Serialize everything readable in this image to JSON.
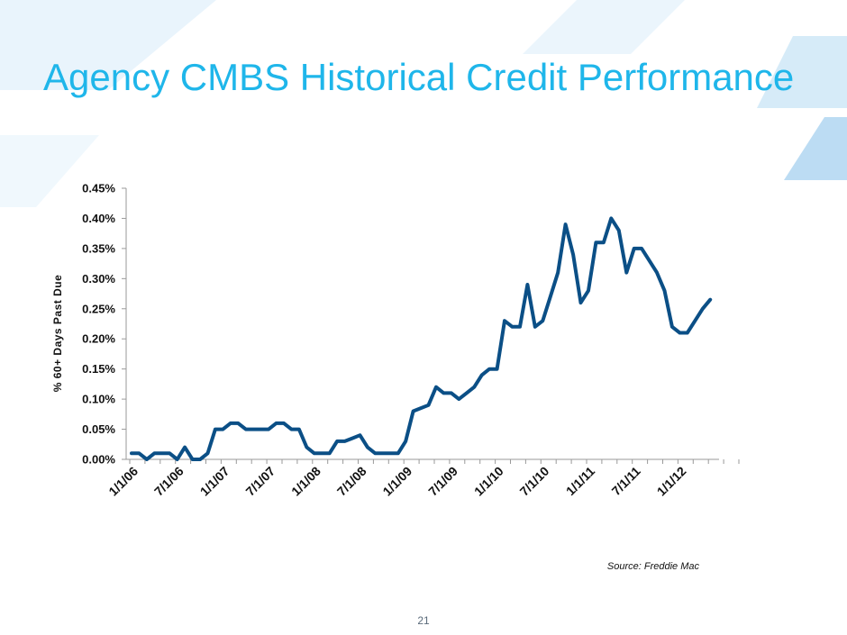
{
  "slide": {
    "title": "Agency CMBS Historical Credit Performance",
    "source": "Source: Freddie Mac",
    "page_number": "21"
  },
  "colors": {
    "title": "#1fb6ea",
    "line": "#0b4f86",
    "accent_light": "#d8ecf8",
    "accent_mid": "#bcdcf3"
  },
  "chart_data": {
    "type": "line",
    "title": "",
    "xlabel": "",
    "ylabel": "% 60+ Days Past Due",
    "ylim": [
      0,
      0.45
    ],
    "y_ticks": [
      0,
      0.05,
      0.1,
      0.15,
      0.2,
      0.25,
      0.3,
      0.35,
      0.4,
      0.45
    ],
    "y_tick_labels": [
      "0.00%",
      "0.05%",
      "0.10%",
      "0.15%",
      "0.20%",
      "0.25%",
      "0.30%",
      "0.35%",
      "0.40%",
      "0.45%"
    ],
    "x_tick_labels": [
      "1/1/06",
      "7/1/06",
      "1/1/07",
      "7/1/07",
      "1/1/08",
      "7/1/08",
      "1/1/09",
      "7/1/09",
      "1/1/10",
      "7/1/10",
      "1/1/11",
      "7/1/11",
      "1/1/12"
    ],
    "months": 81,
    "grid": false,
    "series": [
      {
        "name": "% 60+ Days Past Due",
        "values": [
          0.01,
          0.01,
          0.0,
          0.01,
          0.01,
          0.01,
          0.0,
          0.02,
          0.0,
          0.0,
          0.01,
          0.05,
          0.05,
          0.06,
          0.06,
          0.05,
          0.05,
          0.05,
          0.05,
          0.06,
          0.06,
          0.05,
          0.05,
          0.02,
          0.01,
          0.01,
          0.01,
          0.03,
          0.03,
          0.035,
          0.04,
          0.02,
          0.01,
          0.01,
          0.01,
          0.01,
          0.03,
          0.08,
          0.085,
          0.09,
          0.12,
          0.11,
          0.11,
          0.1,
          0.11,
          0.12,
          0.14,
          0.15,
          0.15,
          0.23,
          0.22,
          0.22,
          0.29,
          0.22,
          0.23,
          0.27,
          0.31,
          0.39,
          0.34,
          0.26,
          0.28,
          0.36,
          0.36,
          0.4,
          0.38,
          0.31,
          0.35,
          0.35,
          0.33,
          0.31,
          0.28,
          0.22,
          0.21,
          0.21,
          0.23,
          0.25,
          0.265
        ]
      }
    ]
  }
}
